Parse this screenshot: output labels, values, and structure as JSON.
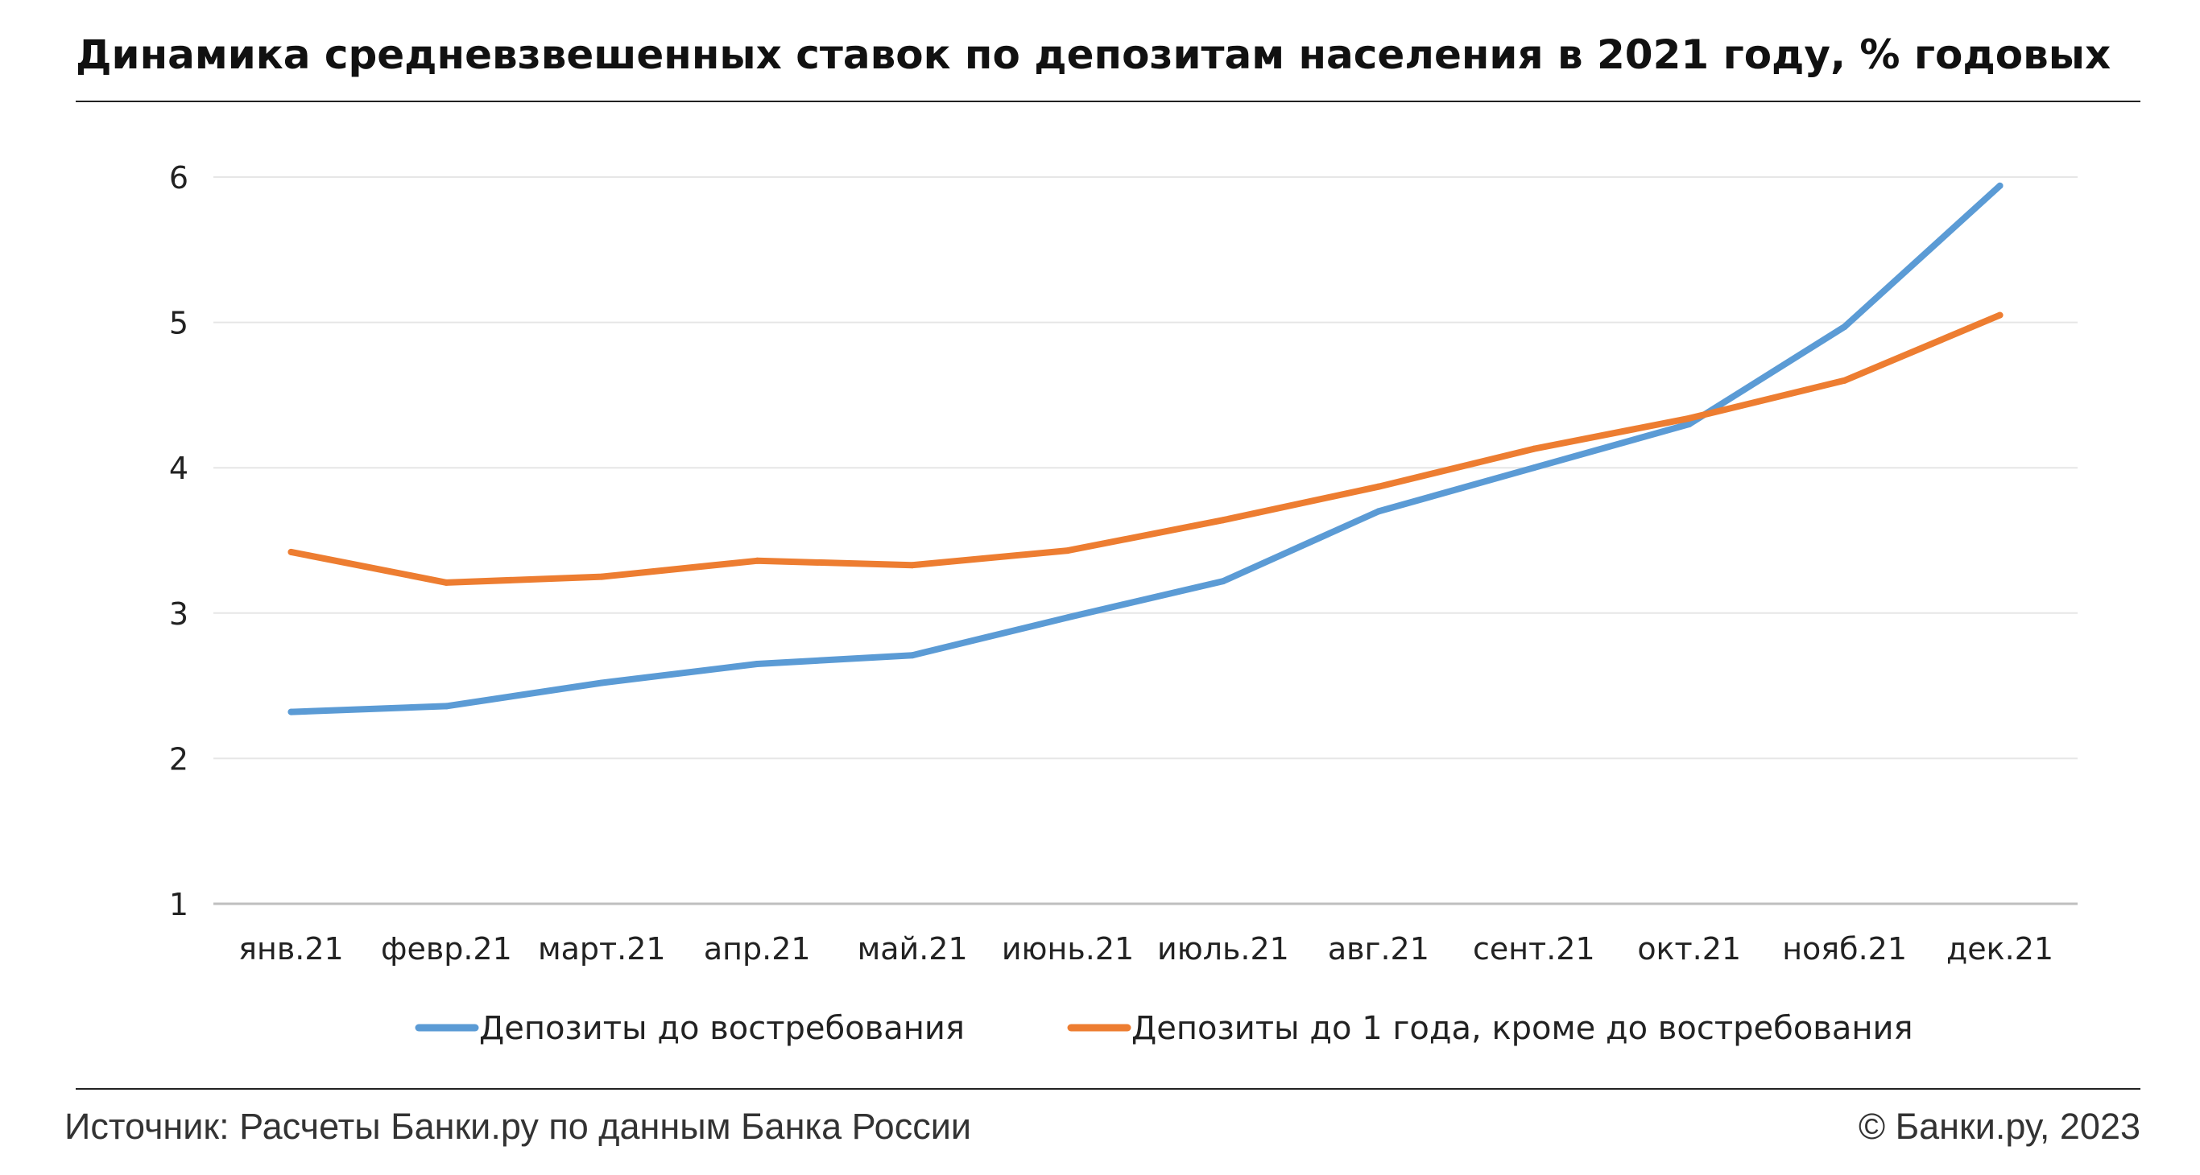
{
  "title": "Динамика средневзвешенных ставок по депозитам населения в 2021 году, % годовых",
  "footer": {
    "source": "Источник: Расчеты Банки.ру по данным Банка России",
    "copyright": "© Банки.ру, 2023"
  },
  "colors": {
    "series_blue": "#5b9bd5",
    "series_orange": "#ed7d31",
    "grid": "#e6e6e6",
    "axis": "#bfbfbf"
  },
  "chart_data": {
    "type": "line",
    "categories": [
      "янв.21",
      "февр.21",
      "март.21",
      "апр.21",
      "май.21",
      "июнь.21",
      "июль.21",
      "авг.21",
      "сент.21",
      "окт.21",
      "нояб.21",
      "дек.21"
    ],
    "series": [
      {
        "name": "Депозиты до востребования",
        "values": [
          2.32,
          2.36,
          2.52,
          2.65,
          2.71,
          2.97,
          3.22,
          3.7,
          4.0,
          4.3,
          4.97,
          5.94
        ]
      },
      {
        "name": "Депозиты до 1 года, кроме до востребования",
        "values": [
          3.42,
          3.21,
          3.25,
          3.36,
          3.33,
          3.43,
          3.64,
          3.87,
          4.13,
          4.34,
          4.6,
          5.05
        ]
      }
    ],
    "y_ticks": [
      "1",
      "2",
      "3",
      "4",
      "5",
      "6"
    ],
    "ylim": [
      1,
      6
    ],
    "grid": true,
    "legend_position": "bottom"
  }
}
